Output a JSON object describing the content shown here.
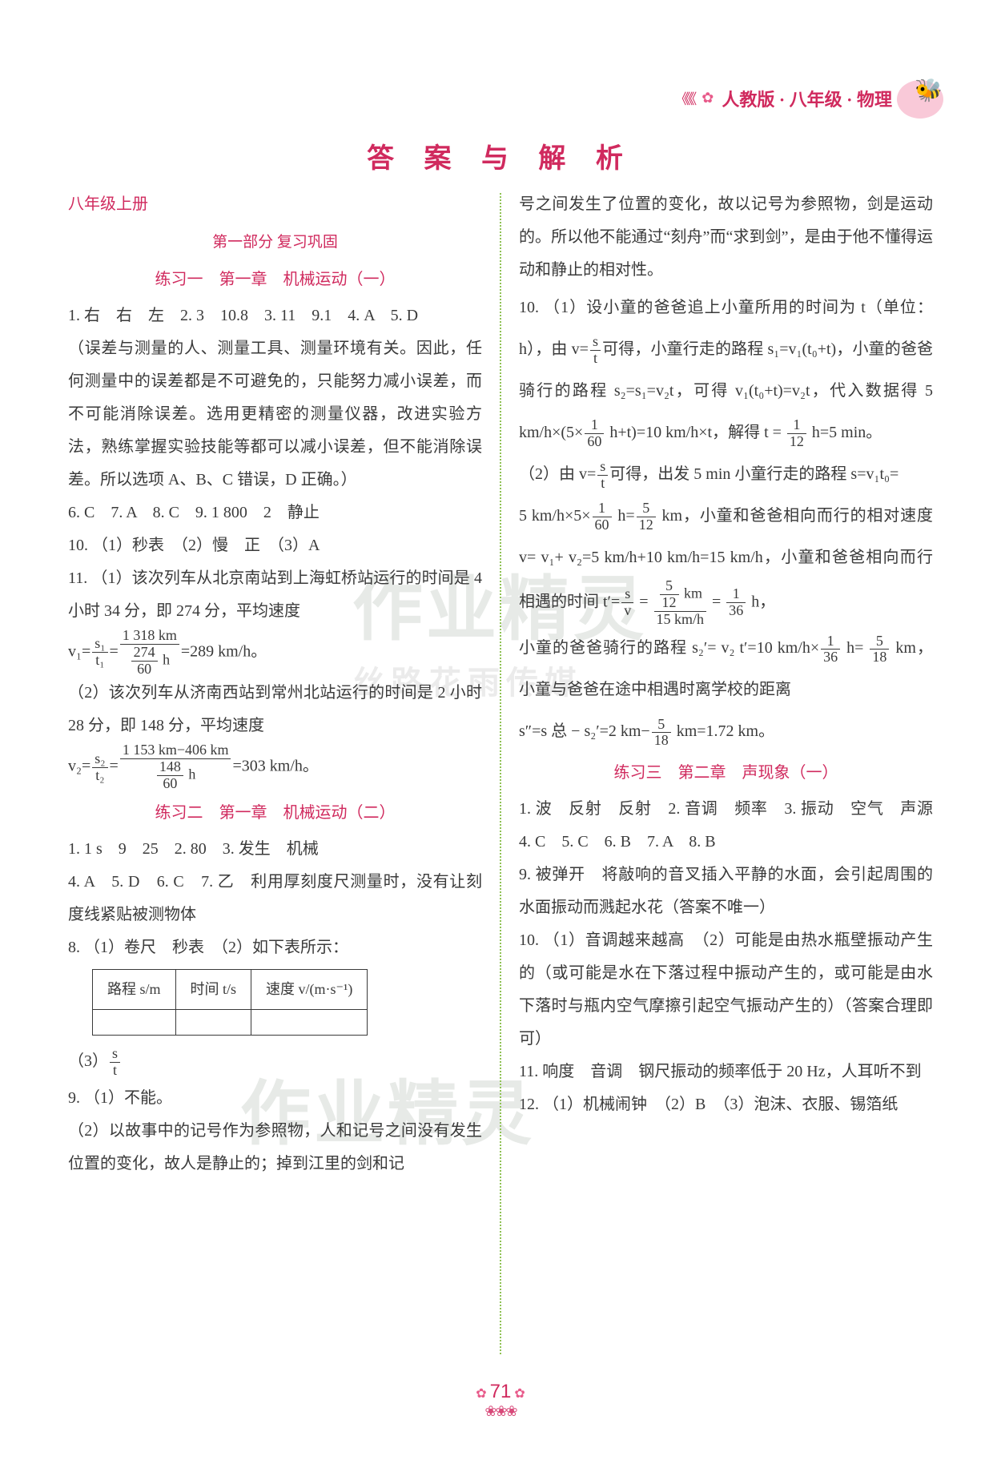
{
  "header": {
    "banner": "人教版 · 八年级 · 物理"
  },
  "title": "答 案 与 解 析",
  "left": {
    "book_label": "八年级上册",
    "part_title": "第一部分 复习巩固",
    "practice1_title": "练习一　第一章　机械运动（一）",
    "p1_line1": "1. 右　右　左　2. 3　10.8　3. 11　9.1　4. A　5. D",
    "p1_para1": "（误差与测量的人、测量工具、测量环境有关。因此，任何测量中的误差都是不可避免的，只能努力减小误差，而不可能消除误差。选用更精密的测量仪器，改进实验方法，熟练掌握实验技能等都可以减小误差，但不能消除误差。所以选项 A、B、C 错误，D 正确。）",
    "p1_line2": "6. C　7. A　8. C　9. 1 800　2　静止",
    "p1_line3": "10. （1）秒表　（2）慢　正　（3）A",
    "p1_line4a": "11. （1）该次列车从北京南站到上海虹桥站运行的时间是 4 小时 34 分，即 274 分，平均速度",
    "p1_eq1_lhs": "v₁=",
    "p1_eq1_f1n": "s₁",
    "p1_eq1_f1d": "t₁",
    "p1_eq1_mid": "=",
    "p1_eq1_f2n": "1 318 km",
    "p1_eq1_f2d_n": "274",
    "p1_eq1_f2d_d": "60",
    "p1_eq1_unit": " h",
    "p1_eq1_res": "=289 km/h。",
    "p1_line5": "（2）该次列车从济南西站到常州北站运行的时间是 2 小时 28 分，即 148 分，平均速度",
    "p1_eq2_lhs": "v₂=",
    "p1_eq2_f1n": "s₂",
    "p1_eq2_f1d": "t₂",
    "p1_eq2_f2n": "1 153 km−406 km",
    "p1_eq2_f2d_n": "148",
    "p1_eq2_f2d_d": "60",
    "p1_eq2_res": "=303 km/h。",
    "practice2_title": "练习二　第一章　机械运动（二）",
    "p2_line1": "1. 1 s　9　25　2. 80　3. 发生　机械",
    "p2_line2": "4. A　5. D　6. C　7. 乙　利用厚刻度尺测量时，没有让刻度线紧贴被测物体",
    "p2_line3": "8. （1）卷尺　秒表　（2）如下表所示：",
    "table": {
      "h1": "路程 s/m",
      "h2": "时间 t/s",
      "h3": "速度 v/(m·s⁻¹)"
    },
    "p2_line4_pre": "（3）",
    "p2_line4_fn": "s",
    "p2_line4_fd": "t",
    "p2_line5": "9. （1）不能。",
    "p2_line6": "（2）以故事中的记号作为参照物，人和记号之间没有发生位置的变化，故人是静止的；掉到江里的剑和记"
  },
  "right": {
    "r_para1": "号之间发生了位置的变化，故以记号为参照物，剑是运动的。所以他不能通过“刻舟”而“求到剑”，是由于他不懂得运动和静止的相对性。",
    "r_line1a": "10. （1）设小童的爸爸追上小童所用的时间为 t（单位：h），由 v=",
    "r_f_st_n": "s",
    "r_f_st_d": "t",
    "r_line1b": "可得，小童行走的路程 s₁=v₁(t₀+t)，小童的爸爸骑行的路程 s₂=s₁=v₂t，可得 v₁(t₀+t)=v₂t，代入数据得 5 km/h×(5×",
    "r_f_160_n": "1",
    "r_f_160_d": "60",
    "r_line1c": " h+t)=10 km/h×t，解得 t =",
    "r_f_112_n": "1",
    "r_f_112_d": "12",
    "r_line1d": " h=5 min。",
    "r_line2a": "（2）由 v=",
    "r_line2b": "可得，出发 5 min 小童行走的路程 s=v₁t₀=",
    "r_line2c": "5 km/h×5×",
    "r_line2d": " h=",
    "r_f_512_n": "5",
    "r_f_512_d": "12",
    "r_line2e": " km，小童和爸爸相向而行的相对速度 v= v₁+ v₂=5 km/h+10 km/h=15 km/h，小童和爸爸相向而行相遇的时间 t′=",
    "r_f_sv_n": "s",
    "r_f_sv_d": "v",
    "r_eq_mid": " = ",
    "r_f_big_nn": "5",
    "r_f_big_nd": "12",
    "r_f_big_nu": " km",
    "r_f_big_d": "15 km/h",
    "r_f_136_n": "1",
    "r_f_136_d": "36",
    "r_line2f": " h，",
    "r_line3a": "小童的爸爸骑行的路程 s₂′= v₂ t′=10 km/h×",
    "r_line3b": " h=",
    "r_f_518_n": "5",
    "r_f_518_d": "18",
    "r_line3c": " km，小童与爸爸在途中相遇时离学校的距离",
    "r_line3d": "s″=s 总 − s₂′=2 km−",
    "r_line3e": " km=1.72 km。",
    "practice3_title": "练习三　第二章　声现象（一）",
    "p3_line1": "1. 波　反射　反射　2. 音调　频率　3. 振动　空气　声源　4. C　5. C　6. B　7. A　8. B",
    "p3_line2": "9. 被弹开　将敲响的音叉插入平静的水面，会引起周围的水面振动而溅起水花（答案不唯一）",
    "p3_line3": "10. （1）音调越来越高　（2）可能是由热水瓶壁振动产生的（或可能是水在下落过程中振动产生的，或可能是由水下落时与瓶内空气摩擦引起空气振动产生的）（答案合理即可）",
    "p3_line4": "11. 响度　音调　钢尺振动的频率低于 20 Hz，人耳听不到",
    "p3_line5": "12. （1）机械闹钟　（2）B　（3）泡沫、衣服、锡箔纸"
  },
  "page_number": "71",
  "watermarks": {
    "wm1": "作业精灵",
    "wm2": "丝路花雨传媒",
    "wm3": "作业精灵"
  }
}
